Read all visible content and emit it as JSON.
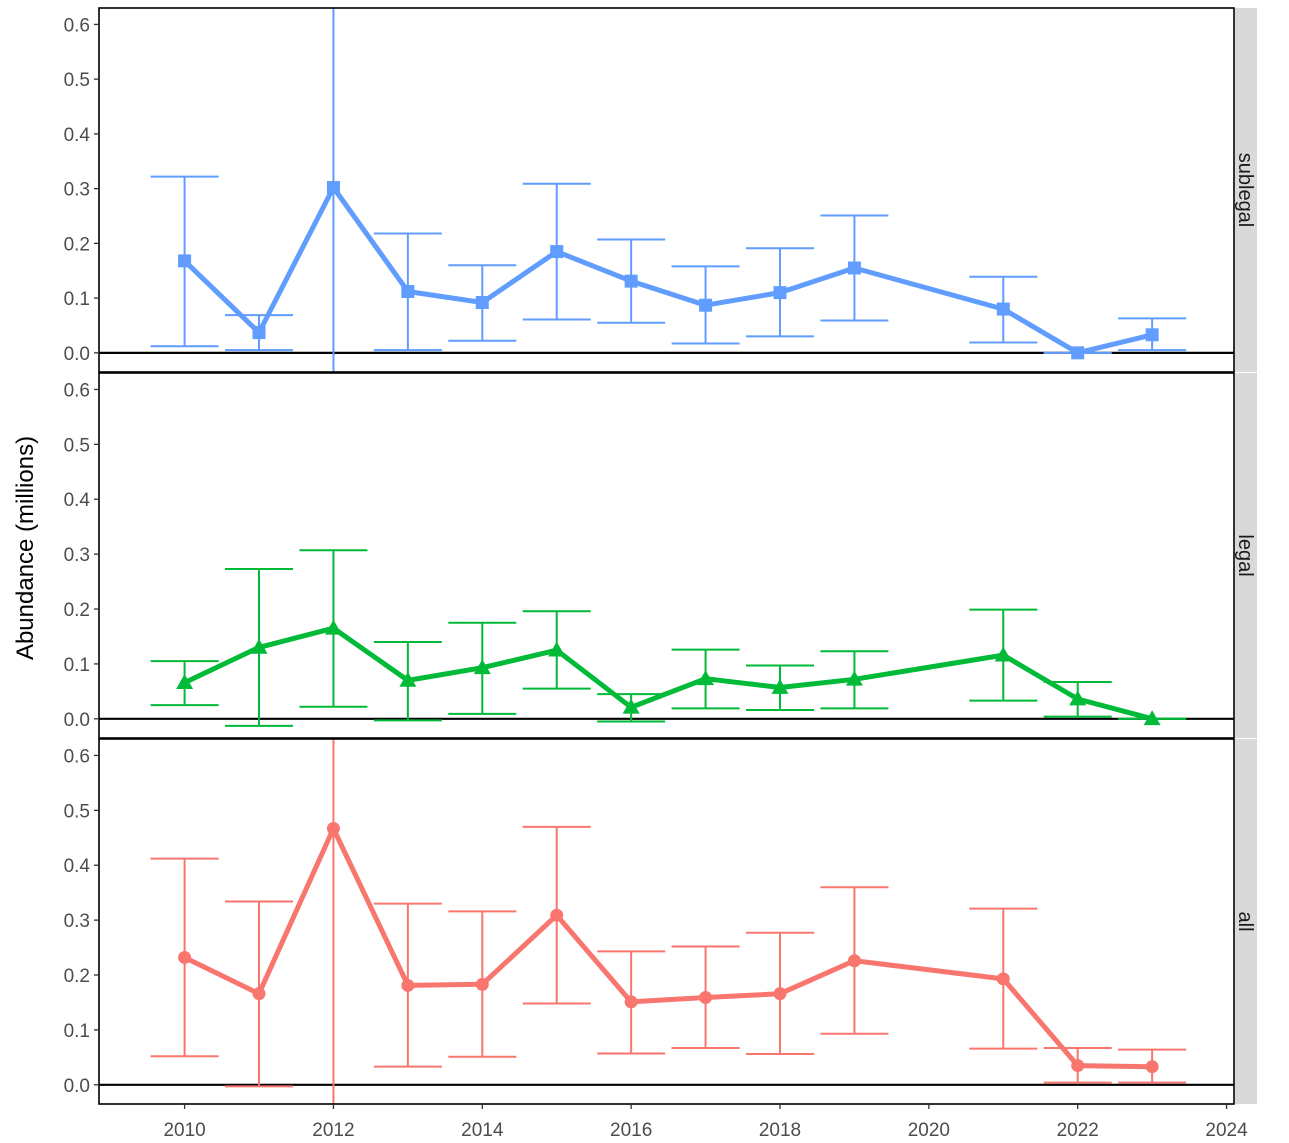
{
  "chart_data": {
    "type": "line",
    "title": "",
    "xlabel": "",
    "ylabel": "Abundance (millions)",
    "xlim": [
      2008.85,
      2024.1
    ],
    "ylim": [
      -0.035,
      0.63
    ],
    "x_ticks": [
      2010,
      2012,
      2014,
      2016,
      2018,
      2020,
      2022,
      2024
    ],
    "y_ticks": [
      0.0,
      0.1,
      0.2,
      0.3,
      0.4,
      0.5,
      0.6
    ],
    "y_tick_labels": [
      "0.0",
      "0.1",
      "0.2",
      "0.3",
      "0.4",
      "0.5",
      "0.6"
    ],
    "grid": false,
    "reference_line_y": 0,
    "facets": [
      {
        "label": "sublegal",
        "color": "#619CFF",
        "marker": "square",
        "x": [
          2010,
          2011,
          2012,
          2013,
          2014,
          2015,
          2016,
          2017,
          2018,
          2019,
          2021,
          2022,
          2023
        ],
        "y": [
          0.168,
          0.037,
          0.302,
          0.112,
          0.092,
          0.185,
          0.131,
          0.087,
          0.11,
          0.155,
          0.08,
          0.0,
          0.033
        ],
        "lower": [
          0.012,
          0.005,
          -0.1,
          0.005,
          0.022,
          0.061,
          0.055,
          0.017,
          0.03,
          0.059,
          0.019,
          0.0,
          0.005
        ],
        "upper": [
          0.322,
          0.069,
          0.7,
          0.218,
          0.16,
          0.309,
          0.207,
          0.158,
          0.191,
          0.251,
          0.139,
          0.0,
          0.063
        ]
      },
      {
        "label": "legal",
        "color": "#00BA38",
        "marker": "triangle",
        "x": [
          2010,
          2011,
          2012,
          2013,
          2014,
          2015,
          2016,
          2017,
          2018,
          2019,
          2021,
          2022,
          2023
        ],
        "y": [
          0.066,
          0.13,
          0.165,
          0.07,
          0.093,
          0.125,
          0.021,
          0.073,
          0.057,
          0.072,
          0.116,
          0.036,
          0.0
        ],
        "lower": [
          0.025,
          -0.013,
          0.022,
          -0.003,
          0.009,
          0.055,
          -0.005,
          0.019,
          0.016,
          0.019,
          0.033,
          0.004,
          0.0
        ],
        "upper": [
          0.105,
          0.273,
          0.307,
          0.14,
          0.175,
          0.196,
          0.045,
          0.126,
          0.097,
          0.123,
          0.199,
          0.067,
          0.0
        ]
      },
      {
        "label": "all",
        "color": "#F8766D",
        "marker": "circle",
        "x": [
          2010,
          2011,
          2012,
          2013,
          2014,
          2015,
          2016,
          2017,
          2018,
          2019,
          2021,
          2022,
          2023
        ],
        "y": [
          0.232,
          0.166,
          0.467,
          0.181,
          0.183,
          0.309,
          0.151,
          0.159,
          0.166,
          0.226,
          0.193,
          0.035,
          0.033
        ],
        "lower": [
          0.052,
          -0.003,
          -0.1,
          0.033,
          0.051,
          0.148,
          0.057,
          0.067,
          0.056,
          0.093,
          0.066,
          0.004,
          0.004
        ],
        "upper": [
          0.412,
          0.334,
          0.8,
          0.33,
          0.316,
          0.47,
          0.243,
          0.252,
          0.277,
          0.36,
          0.321,
          0.067,
          0.064
        ]
      }
    ]
  }
}
